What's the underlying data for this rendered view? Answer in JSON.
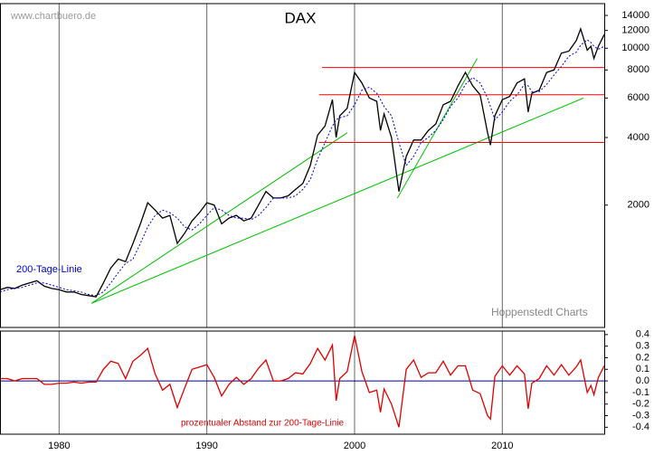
{
  "chart_data": [
    {
      "type": "line",
      "title": "DAX",
      "annotations": [
        "www.chartbuero.de",
        "Hoppenstedt Charts"
      ],
      "log_scale": true,
      "xlim": [
        1976,
        2016.9
      ],
      "ylim": [
        570,
        15800
      ],
      "yticks": [
        {
          "value": 2000,
          "label": "2000"
        },
        {
          "value": 4000,
          "label": "4000"
        },
        {
          "value": 6000,
          "label": "6000"
        },
        {
          "value": 8000,
          "label": "8000"
        },
        {
          "value": 10000,
          "label": "10000"
        },
        {
          "value": 12000,
          "label": "12000"
        },
        {
          "value": 14000,
          "label": "14000"
        }
      ],
      "x": [
        1976,
        1976.5,
        1977,
        1977.5,
        1978,
        1978.5,
        1979,
        1979.5,
        1980,
        1980.5,
        1981,
        1981.5,
        1982,
        1982.5,
        1983,
        1983.5,
        1984,
        1984.5,
        1985,
        1985.5,
        1986,
        1986.5,
        1987,
        1987.5,
        1988,
        1988.5,
        1989,
        1989.5,
        1990,
        1990.5,
        1991,
        1991.5,
        1992,
        1992.5,
        1993,
        1993.5,
        1994,
        1994.5,
        1995,
        1995.5,
        1996,
        1996.5,
        1997,
        1997.5,
        1998,
        1998.5,
        1998.75,
        1999,
        1999.5,
        2000,
        2000.5,
        2001,
        2001.5,
        2001.75,
        2002,
        2002.5,
        2003,
        2003.5,
        2004,
        2004.5,
        2005,
        2005.5,
        2006,
        2006.5,
        2007,
        2007.5,
        2008,
        2008.5,
        2009,
        2009.2,
        2009.5,
        2010,
        2010.5,
        2011,
        2011.5,
        2011.75,
        2012,
        2012.5,
        2013,
        2013.5,
        2014,
        2014.5,
        2015,
        2015.3,
        2015.75,
        2016,
        2016.2,
        2016.5,
        2016.9
      ],
      "series": [
        {
          "color": "#000000",
          "values": [
            840,
            860,
            850,
            880,
            900,
            920,
            870,
            850,
            840,
            820,
            820,
            800,
            790,
            780,
            900,
            1050,
            1150,
            1120,
            1350,
            1650,
            2050,
            1900,
            1750,
            1800,
            1350,
            1500,
            1700,
            1850,
            2050,
            2000,
            1650,
            1750,
            1800,
            1700,
            1750,
            2000,
            2300,
            2150,
            2150,
            2200,
            2350,
            2500,
            3000,
            4100,
            4500,
            5900,
            4000,
            5000,
            5400,
            7800,
            7000,
            6000,
            5800,
            4300,
            5100,
            4000,
            2300,
            3300,
            3900,
            3900,
            4300,
            4600,
            5600,
            5800,
            6800,
            7800,
            6800,
            6200,
            4200,
            3700,
            5000,
            5900,
            6100,
            7000,
            7300,
            5200,
            6300,
            6500,
            7800,
            8000,
            9500,
            9700,
            10800,
            12200,
            9800,
            10200,
            9000,
            10200,
            11500
          ]
        },
        {
          "name": "200-Tage-Linie",
          "color": "#0000dd",
          "dashed": true,
          "values": [
            820,
            840,
            850,
            860,
            880,
            900,
            900,
            880,
            860,
            840,
            830,
            820,
            800,
            790,
            820,
            900,
            1000,
            1100,
            1150,
            1350,
            1600,
            1800,
            1900,
            1850,
            1750,
            1600,
            1550,
            1650,
            1800,
            1950,
            1900,
            1800,
            1750,
            1750,
            1720,
            1800,
            1950,
            2150,
            2150,
            2150,
            2200,
            2350,
            2600,
            3200,
            3800,
            4500,
            4800,
            4900,
            5000,
            5600,
            6500,
            6700,
            6300,
            5900,
            5500,
            5000,
            3800,
            3000,
            3300,
            3800,
            4000,
            4300,
            4800,
            5500,
            6000,
            6900,
            7400,
            7000,
            6000,
            5500,
            4800,
            5200,
            5800,
            6200,
            6900,
            6800,
            6400,
            6400,
            6900,
            7600,
            8300,
            9200,
            9600,
            10300,
            10900,
            10600,
            10200,
            9900,
            10200
          ]
        }
      ],
      "trendlines": [
        {
          "color": "#00c000",
          "x": [
            1982.2,
            1999.5
          ],
          "y": [
            730,
            4200
          ]
        },
        {
          "color": "#00c000",
          "x": [
            1982.2,
            2015.5
          ],
          "y": [
            730,
            6000
          ]
        },
        {
          "color": "#00c000",
          "x": [
            2002.9,
            2008.3
          ],
          "y": [
            2150,
            9000
          ]
        },
        {
          "color": "#ff0000",
          "x": [
            1997.8,
            2016.9
          ],
          "y": [
            8200,
            8200
          ]
        },
        {
          "color": "#ff0000",
          "x": [
            1997.6,
            2016.9
          ],
          "y": [
            6200,
            6200
          ]
        },
        {
          "color": "#ff0000",
          "x": [
            1997.6,
            2016.9
          ],
          "y": [
            3800,
            3800
          ]
        }
      ]
    },
    {
      "type": "line",
      "xlim": [
        1976,
        2016.9
      ],
      "xticks": [
        1980,
        1990,
        2000,
        2010
      ],
      "ylim": [
        -0.46,
        0.43
      ],
      "zero_line": true,
      "yticks": [
        0.4,
        0.3,
        0.2,
        0.1,
        {
          "value": 0,
          "label": "0.0"
        },
        -0.1,
        -0.2,
        -0.3,
        -0.4
      ],
      "x": [
        1976,
        1976.5,
        1977,
        1977.5,
        1978,
        1978.5,
        1979,
        1979.5,
        1980,
        1980.5,
        1981,
        1981.5,
        1982,
        1982.5,
        1983,
        1983.5,
        1984,
        1984.5,
        1985,
        1985.5,
        1986,
        1986.5,
        1987,
        1987.5,
        1988,
        1988.5,
        1989,
        1989.5,
        1990,
        1990.5,
        1991,
        1991.5,
        1992,
        1992.5,
        1993,
        1993.5,
        1994,
        1994.5,
        1995,
        1995.5,
        1996,
        1996.5,
        1997,
        1997.5,
        1998,
        1998.5,
        1998.75,
        1999,
        1999.5,
        2000,
        2000.5,
        2001,
        2001.5,
        2001.75,
        2002,
        2002.5,
        2003,
        2003.5,
        2004,
        2004.5,
        2005,
        2005.5,
        2006,
        2006.5,
        2007,
        2007.5,
        2008,
        2008.5,
        2009,
        2009.2,
        2009.5,
        2010,
        2010.5,
        2011,
        2011.5,
        2011.75,
        2012,
        2012.5,
        2013,
        2013.5,
        2014,
        2014.5,
        2015,
        2015.3,
        2015.75,
        2016,
        2016.2,
        2016.5,
        2016.9
      ],
      "series": [
        {
          "name": "prozentualer Abstand zur 200-Tage-Linie",
          "color": "#e00000",
          "values": [
            0.02,
            0.02,
            0,
            0.02,
            0.02,
            0.02,
            -0.03,
            -0.03,
            -0.02,
            -0.02,
            -0.01,
            -0.02,
            -0.01,
            -0.01,
            0.1,
            0.17,
            0.15,
            0.02,
            0.17,
            0.22,
            0.28,
            0.06,
            -0.08,
            -0.03,
            -0.23,
            -0.06,
            0.1,
            0.12,
            0.14,
            0.03,
            -0.13,
            -0.03,
            0.03,
            -0.03,
            0.02,
            0.11,
            0.18,
            0,
            0,
            0.02,
            0.07,
            0.06,
            0.15,
            0.28,
            0.18,
            0.31,
            -0.17,
            0.02,
            0.08,
            0.39,
            0.08,
            -0.1,
            -0.08,
            -0.27,
            -0.07,
            -0.2,
            -0.4,
            0.1,
            0.18,
            0.03,
            0.07,
            0.07,
            0.17,
            0.05,
            0.13,
            0.13,
            -0.08,
            -0.11,
            -0.3,
            -0.33,
            0.04,
            0.13,
            0.05,
            0.13,
            0.06,
            -0.24,
            -0.02,
            0.02,
            0.13,
            0.05,
            0.14,
            0.05,
            0.12,
            0.18,
            -0.1,
            -0.04,
            -0.12,
            0.03,
            0.13
          ]
        }
      ]
    }
  ]
}
